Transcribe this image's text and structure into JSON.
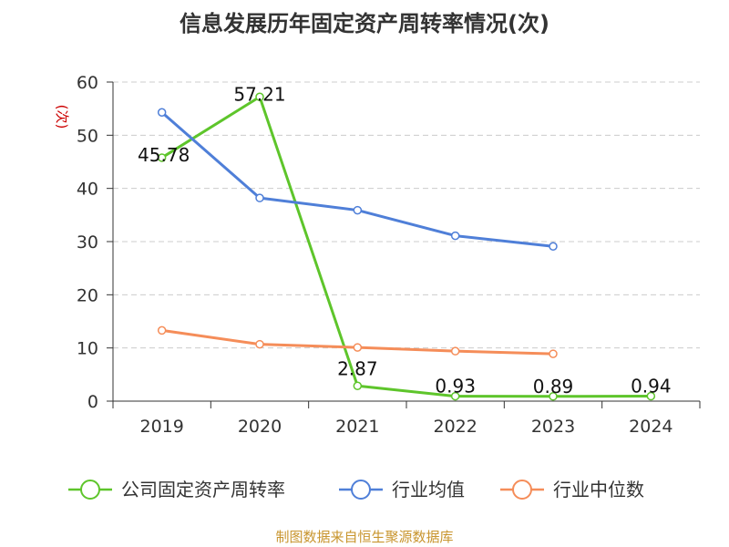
{
  "title": "信息发展历年固定资产周转率情况(次)",
  "source": "制图数据来自恒生聚源数据库",
  "chart_data": {
    "type": "line",
    "title": "信息发展历年固定资产周转率情况(次)",
    "ylabel": "(次)",
    "xlabel": "",
    "ylim": [
      0,
      60
    ],
    "yticks": [
      0,
      10,
      20,
      30,
      40,
      50,
      60
    ],
    "grid": true,
    "legend_position": "bottom",
    "categories": [
      "2019",
      "2020",
      "2021",
      "2022",
      "2023",
      "2024"
    ],
    "series": [
      {
        "name": "公司固定资产周转率",
        "color": "#5ec52b",
        "values": [
          45.78,
          57.21,
          2.87,
          0.93,
          0.89,
          0.94
        ],
        "labels": [
          "45.78",
          "57.21",
          "2.87",
          "0.93",
          "0.89",
          "0.94"
        ]
      },
      {
        "name": "行业均值",
        "color": "#4f7fd8",
        "values": [
          54.3,
          38.2,
          35.9,
          31.1,
          29.1,
          null
        ]
      },
      {
        "name": "行业中位数",
        "color": "#f58d59",
        "values": [
          13.3,
          10.7,
          10.1,
          9.4,
          8.9,
          null
        ]
      }
    ]
  }
}
